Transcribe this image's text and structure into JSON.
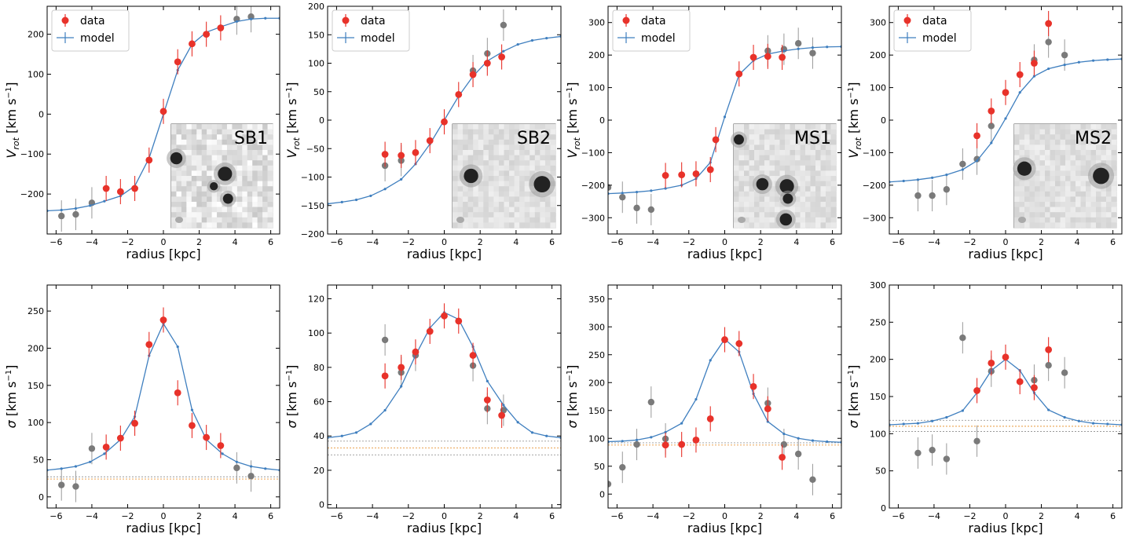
{
  "colors": {
    "data": "#e8322a",
    "outside": "#7a7a7a",
    "model": "#3f7fbf",
    "band_orange": "#e8963a",
    "band_grey": "#999999",
    "label_red": "#e8322a",
    "label_green": "#2e7d1e"
  },
  "legend": {
    "data_label": "data",
    "model_label": "model"
  },
  "chart_data": [
    {
      "type": "scatter",
      "row": "top",
      "col": 0,
      "inset_label": "SB1",
      "inset_label_color": "red",
      "xlabel": "radius [kpc]",
      "ylabel": "V_rot [km s^-1]",
      "xlim": [
        -6.5,
        6.5
      ],
      "ylim": [
        -300,
        270
      ],
      "xticks": [
        -6,
        -4,
        -2,
        0,
        2,
        4,
        6
      ],
      "yticks": [
        -200,
        -100,
        0,
        100,
        200
      ],
      "model": {
        "x": [
          -6.5,
          -5.7,
          -4.9,
          -4.1,
          -3.3,
          -2.4,
          -1.6,
          -0.8,
          0,
          0.8,
          1.6,
          2.4,
          3.3,
          4.1,
          4.9,
          5.7,
          6.5
        ],
        "y": [
          -242,
          -240,
          -236,
          -229,
          -218,
          -205,
          -180,
          -110,
          0,
          110,
          175,
          205,
          220,
          232,
          238,
          240,
          240
        ]
      },
      "data": [
        {
          "x": -3.2,
          "y": -186
        },
        {
          "x": -2.4,
          "y": -194
        },
        {
          "x": -1.6,
          "y": -186
        },
        {
          "x": -0.8,
          "y": -115
        },
        {
          "x": 0,
          "y": 7
        },
        {
          "x": 0.8,
          "y": 131
        },
        {
          "x": 1.6,
          "y": 176
        },
        {
          "x": 2.4,
          "y": 200
        },
        {
          "x": 3.2,
          "y": 216
        }
      ],
      "outside": [
        {
          "x": -5.7,
          "y": -255
        },
        {
          "x": -4.9,
          "y": -251
        },
        {
          "x": -4.0,
          "y": -222
        },
        {
          "x": 4.1,
          "y": 238
        },
        {
          "x": 4.9,
          "y": 244
        }
      ]
    },
    {
      "type": "scatter",
      "row": "top",
      "col": 1,
      "inset_label": "SB2",
      "inset_label_color": "red",
      "xlabel": "radius [kpc]",
      "ylabel": "V_rot [km s^-1]",
      "xlim": [
        -6.5,
        6.5
      ],
      "ylim": [
        -200,
        200
      ],
      "xticks": [
        -6,
        -4,
        -2,
        0,
        2,
        4,
        6
      ],
      "yticks": [
        -200,
        -150,
        -100,
        -50,
        0,
        50,
        100,
        150,
        200
      ],
      "model": {
        "x": [
          -6.5,
          -5.7,
          -4.9,
          -4.1,
          -3.3,
          -2.4,
          -1.6,
          -0.8,
          0,
          0.8,
          1.6,
          2.4,
          3.3,
          4.1,
          4.9,
          5.7,
          6.5
        ],
        "y": [
          -147,
          -144,
          -140,
          -133,
          -121,
          -104,
          -77,
          -42,
          0,
          42,
          77,
          104,
          121,
          133,
          140,
          144,
          147
        ]
      },
      "data": [
        {
          "x": -3.3,
          "y": -60
        },
        {
          "x": -2.4,
          "y": -62
        },
        {
          "x": -1.6,
          "y": -57
        },
        {
          "x": -0.8,
          "y": -36
        },
        {
          "x": 0,
          "y": -3
        },
        {
          "x": 0.8,
          "y": 45
        },
        {
          "x": 1.6,
          "y": 80
        },
        {
          "x": 2.4,
          "y": 100
        },
        {
          "x": 3.2,
          "y": 111
        }
      ],
      "outside": [
        {
          "x": -3.3,
          "y": -80
        },
        {
          "x": -2.4,
          "y": -71
        },
        {
          "x": 1.6,
          "y": 87
        },
        {
          "x": 2.4,
          "y": 117
        },
        {
          "x": 3.3,
          "y": 167
        }
      ]
    },
    {
      "type": "scatter",
      "row": "top",
      "col": 2,
      "inset_label": "MS1",
      "inset_label_color": "green",
      "xlabel": "radius [kpc]",
      "ylabel": "V_rot [km s^-1]",
      "xlim": [
        -6.5,
        6.5
      ],
      "ylim": [
        -350,
        350
      ],
      "xticks": [
        -6,
        -4,
        -2,
        0,
        2,
        4,
        6
      ],
      "yticks": [
        -300,
        -200,
        -100,
        0,
        100,
        200,
        300
      ],
      "model": {
        "x": [
          -6.5,
          -5.7,
          -4.9,
          -4.1,
          -3.3,
          -2.4,
          -1.6,
          -0.8,
          0,
          0.8,
          1.6,
          2.4,
          3.3,
          4.1,
          4.9,
          5.7,
          6.5
        ],
        "y": [
          -226,
          -224,
          -221,
          -217,
          -210,
          -200,
          -180,
          -130,
          10,
          140,
          183,
          203,
          213,
          219,
          223,
          225,
          226
        ]
      },
      "data": [
        {
          "x": -3.3,
          "y": -170
        },
        {
          "x": -2.4,
          "y": -168
        },
        {
          "x": -1.6,
          "y": -165
        },
        {
          "x": -0.8,
          "y": -152
        },
        {
          "x": -0.5,
          "y": -60
        },
        {
          "x": 0.8,
          "y": 142
        },
        {
          "x": 1.6,
          "y": 193
        },
        {
          "x": 2.4,
          "y": 196
        },
        {
          "x": 3.2,
          "y": 193
        }
      ],
      "outside": [
        {
          "x": -6.5,
          "y": -207
        },
        {
          "x": -5.7,
          "y": -237
        },
        {
          "x": -4.9,
          "y": -270
        },
        {
          "x": -4.1,
          "y": -275
        },
        {
          "x": 2.4,
          "y": 213
        },
        {
          "x": 3.3,
          "y": 218
        },
        {
          "x": 4.1,
          "y": 236
        },
        {
          "x": 4.9,
          "y": 206
        }
      ]
    },
    {
      "type": "scatter",
      "row": "top",
      "col": 3,
      "inset_label": "MS2",
      "inset_label_color": "green",
      "xlabel": "radius [kpc]",
      "ylabel": "V_rot [km s^-1]",
      "xlim": [
        -6.5,
        6.5
      ],
      "ylim": [
        -350,
        350
      ],
      "xticks": [
        -6,
        -4,
        -2,
        0,
        2,
        4,
        6
      ],
      "yticks": [
        -300,
        -200,
        -100,
        0,
        100,
        200,
        300
      ],
      "model": {
        "x": [
          -6.5,
          -5.7,
          -4.9,
          -4.1,
          -3.3,
          -2.4,
          -1.6,
          -0.8,
          0,
          0.8,
          1.6,
          2.4,
          3.3,
          4.1,
          4.9,
          5.7,
          6.5
        ],
        "y": [
          -190,
          -187,
          -183,
          -177,
          -168,
          -152,
          -125,
          -70,
          5,
          85,
          135,
          158,
          170,
          178,
          183,
          186,
          188
        ]
      },
      "data": [
        {
          "x": -1.6,
          "y": -48
        },
        {
          "x": -0.8,
          "y": 28
        },
        {
          "x": 0,
          "y": 85
        },
        {
          "x": 0.8,
          "y": 140
        },
        {
          "x": 1.6,
          "y": 175
        },
        {
          "x": 2.4,
          "y": 297
        }
      ],
      "outside": [
        {
          "x": -4.9,
          "y": -232
        },
        {
          "x": -4.1,
          "y": -232
        },
        {
          "x": -3.3,
          "y": -213
        },
        {
          "x": -2.4,
          "y": -135
        },
        {
          "x": -1.6,
          "y": -120
        },
        {
          "x": -0.8,
          "y": -18
        },
        {
          "x": 1.6,
          "y": 185
        },
        {
          "x": 2.4,
          "y": 240
        },
        {
          "x": 3.3,
          "y": 200
        }
      ]
    },
    {
      "type": "scatter",
      "row": "bottom",
      "col": 0,
      "xlabel": "radius [kpc]",
      "ylabel": "σ [km s^-1]",
      "xlim": [
        -6.5,
        6.5
      ],
      "ylim": [
        -15,
        285
      ],
      "xticks": [
        -6,
        -4,
        -2,
        0,
        2,
        4,
        6
      ],
      "yticks": [
        0,
        50,
        100,
        150,
        200,
        250
      ],
      "bands": [
        24,
        27
      ],
      "model": {
        "x": [
          -6.5,
          -5.7,
          -4.9,
          -4.1,
          -3.3,
          -2.4,
          -1.6,
          -0.8,
          0,
          0.8,
          1.6,
          2.4,
          3.3,
          4.1,
          4.9,
          5.7,
          6.5
        ],
        "y": [
          36,
          38,
          41,
          47,
          58,
          77,
          108,
          190,
          233,
          202,
          117,
          77,
          58,
          47,
          41,
          38,
          36
        ]
      },
      "data": [
        {
          "x": -3.2,
          "y": 67
        },
        {
          "x": -2.4,
          "y": 79
        },
        {
          "x": -1.6,
          "y": 99
        },
        {
          "x": -0.8,
          "y": 205
        },
        {
          "x": 0,
          "y": 238
        },
        {
          "x": 0.8,
          "y": 140
        },
        {
          "x": 1.6,
          "y": 96
        },
        {
          "x": 2.4,
          "y": 80
        },
        {
          "x": 3.2,
          "y": 69
        }
      ],
      "outside": [
        {
          "x": -5.7,
          "y": 16
        },
        {
          "x": -4.9,
          "y": 14
        },
        {
          "x": -4.0,
          "y": 65
        },
        {
          "x": 4.1,
          "y": 39
        },
        {
          "x": 4.9,
          "y": 28
        }
      ]
    },
    {
      "type": "scatter",
      "row": "bottom",
      "col": 1,
      "xlabel": "radius [kpc]",
      "ylabel": "σ [km s^-1]",
      "xlim": [
        -6.5,
        6.5
      ],
      "ylim": [
        -2,
        128
      ],
      "xticks": [
        -6,
        -4,
        -2,
        0,
        2,
        4,
        6
      ],
      "yticks": [
        0,
        20,
        40,
        60,
        80,
        100,
        120
      ],
      "bands": [
        29,
        33,
        37
      ],
      "model": {
        "x": [
          -6.5,
          -5.7,
          -4.9,
          -4.1,
          -3.3,
          -2.4,
          -1.6,
          -0.8,
          0,
          0.8,
          1.6,
          2.4,
          3.3,
          4.1,
          4.9,
          5.7,
          6.5
        ],
        "y": [
          39,
          40,
          42,
          47,
          55,
          69,
          87,
          103,
          112,
          108,
          92,
          72,
          58,
          48,
          42,
          40,
          39
        ]
      },
      "data": [
        {
          "x": -3.3,
          "y": 75
        },
        {
          "x": -2.4,
          "y": 80
        },
        {
          "x": -1.6,
          "y": 89
        },
        {
          "x": -0.8,
          "y": 101
        },
        {
          "x": 0,
          "y": 110
        },
        {
          "x": 0.8,
          "y": 107
        },
        {
          "x": 1.6,
          "y": 87
        },
        {
          "x": 2.4,
          "y": 61
        },
        {
          "x": 3.2,
          "y": 52
        }
      ],
      "outside": [
        {
          "x": -3.3,
          "y": 96
        },
        {
          "x": -2.4,
          "y": 77
        },
        {
          "x": -1.6,
          "y": 87
        },
        {
          "x": 1.6,
          "y": 81
        },
        {
          "x": 2.4,
          "y": 56
        },
        {
          "x": 3.3,
          "y": 55
        }
      ]
    },
    {
      "type": "scatter",
      "row": "bottom",
      "col": 2,
      "xlabel": "radius [kpc]",
      "ylabel": "σ [km s^-1]",
      "xlim": [
        -6.5,
        6.5
      ],
      "ylim": [
        -25,
        375
      ],
      "xticks": [
        -6,
        -4,
        -2,
        0,
        2,
        4,
        6
      ],
      "yticks": [
        0,
        50,
        100,
        150,
        200,
        250,
        300,
        350
      ],
      "bands": [
        88,
        92
      ],
      "model": {
        "x": [
          -6.5,
          -5.7,
          -4.9,
          -4.1,
          -3.3,
          -2.4,
          -1.6,
          -0.8,
          0,
          0.8,
          1.6,
          2.4,
          3.3,
          4.1,
          4.9,
          5.7,
          6.5
        ],
        "y": [
          94,
          95,
          97,
          102,
          111,
          127,
          170,
          240,
          278,
          255,
          180,
          130,
          108,
          100,
          96,
          94,
          93
        ]
      },
      "data": [
        {
          "x": -3.3,
          "y": 88
        },
        {
          "x": -2.4,
          "y": 89
        },
        {
          "x": -1.6,
          "y": 97
        },
        {
          "x": -0.8,
          "y": 135
        },
        {
          "x": 0,
          "y": 277
        },
        {
          "x": 0.8,
          "y": 270
        },
        {
          "x": 1.6,
          "y": 193
        },
        {
          "x": 2.4,
          "y": 153
        },
        {
          "x": 3.2,
          "y": 66
        }
      ],
      "outside": [
        {
          "x": -6.5,
          "y": 18
        },
        {
          "x": -5.7,
          "y": 48
        },
        {
          "x": -4.9,
          "y": 89
        },
        {
          "x": -4.1,
          "y": 165
        },
        {
          "x": -3.3,
          "y": 99
        },
        {
          "x": 2.4,
          "y": 163
        },
        {
          "x": 3.3,
          "y": 89
        },
        {
          "x": 4.1,
          "y": 72
        },
        {
          "x": 4.9,
          "y": 26
        }
      ]
    },
    {
      "type": "scatter",
      "row": "bottom",
      "col": 3,
      "xlabel": "radius [kpc]",
      "ylabel": "σ [km s^-1]",
      "xlim": [
        -6.5,
        6.5
      ],
      "ylim": [
        0,
        300
      ],
      "xticks": [
        -6,
        -4,
        -2,
        0,
        2,
        4,
        6
      ],
      "yticks": [
        0,
        50,
        100,
        150,
        200,
        250,
        300
      ],
      "bands": [
        103,
        110,
        118
      ],
      "model": {
        "x": [
          -6.5,
          -5.7,
          -4.9,
          -4.1,
          -3.3,
          -2.4,
          -1.6,
          -0.8,
          0,
          0.8,
          1.6,
          2.4,
          3.3,
          4.1,
          4.9,
          5.7,
          6.5
        ],
        "y": [
          112,
          113,
          114,
          117,
          122,
          131,
          155,
          185,
          200,
          185,
          155,
          132,
          122,
          117,
          114,
          113,
          112
        ]
      },
      "data": [
        {
          "x": -1.6,
          "y": 158
        },
        {
          "x": -0.8,
          "y": 195
        },
        {
          "x": 0,
          "y": 203
        },
        {
          "x": 0.8,
          "y": 170
        },
        {
          "x": 1.6,
          "y": 162
        },
        {
          "x": 2.4,
          "y": 213
        }
      ],
      "outside": [
        {
          "x": -4.9,
          "y": 74
        },
        {
          "x": -4.1,
          "y": 78
        },
        {
          "x": -3.3,
          "y": 66
        },
        {
          "x": -2.4,
          "y": 229
        },
        {
          "x": -1.6,
          "y": 90
        },
        {
          "x": -0.8,
          "y": 184
        },
        {
          "x": 1.6,
          "y": 172
        },
        {
          "x": 2.4,
          "y": 192
        },
        {
          "x": 3.3,
          "y": 182
        }
      ]
    }
  ]
}
